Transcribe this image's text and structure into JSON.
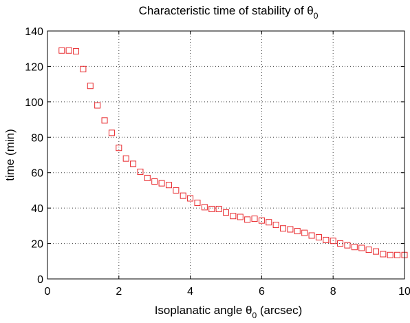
{
  "chart_data": {
    "type": "scatter",
    "title": "Characteristic time of stability of θ",
    "title_sub": "0",
    "xlabel": "Isoplanatic angle θ",
    "xlabel_sub": "0",
    "xlabel_suffix": " (arcsec)",
    "ylabel": "time (min)",
    "xlim": [
      0,
      10
    ],
    "ylim": [
      0,
      140
    ],
    "xticks": [
      0,
      2,
      4,
      6,
      8,
      10
    ],
    "yticks": [
      0,
      20,
      40,
      60,
      80,
      100,
      120,
      140
    ],
    "grid": true,
    "marker": "square",
    "marker_color": "#e8282c",
    "series": [
      {
        "x": [
          0.4,
          0.6,
          0.8,
          1.0,
          1.2,
          1.4,
          1.6,
          1.8,
          2.0,
          2.2,
          2.4,
          2.6,
          2.8,
          3.0,
          3.2,
          3.4,
          3.6,
          3.8,
          4.0,
          4.2,
          4.4,
          4.6,
          4.8,
          5.0,
          5.2,
          5.4,
          5.6,
          5.8,
          6.0,
          6.2,
          6.4,
          6.6,
          6.8,
          7.0,
          7.2,
          7.4,
          7.6,
          7.8,
          8.0,
          8.2,
          8.4,
          8.6,
          8.8,
          9.0,
          9.2,
          9.4,
          9.6,
          9.8,
          10.0
        ],
        "y": [
          129,
          129,
          128.5,
          118.5,
          109,
          98,
          89.5,
          82.5,
          74,
          68,
          65,
          60.5,
          57,
          55,
          54,
          53,
          50,
          47,
          45.5,
          43,
          40.5,
          39.5,
          39.5,
          37.5,
          35.5,
          35,
          33.5,
          34,
          33,
          32,
          30.5,
          28.5,
          28,
          27,
          26,
          24.5,
          23.5,
          22,
          21.5,
          20,
          19,
          18,
          17.5,
          16.5,
          15.5,
          14,
          13.5,
          13.5,
          13.5
        ]
      }
    ]
  }
}
